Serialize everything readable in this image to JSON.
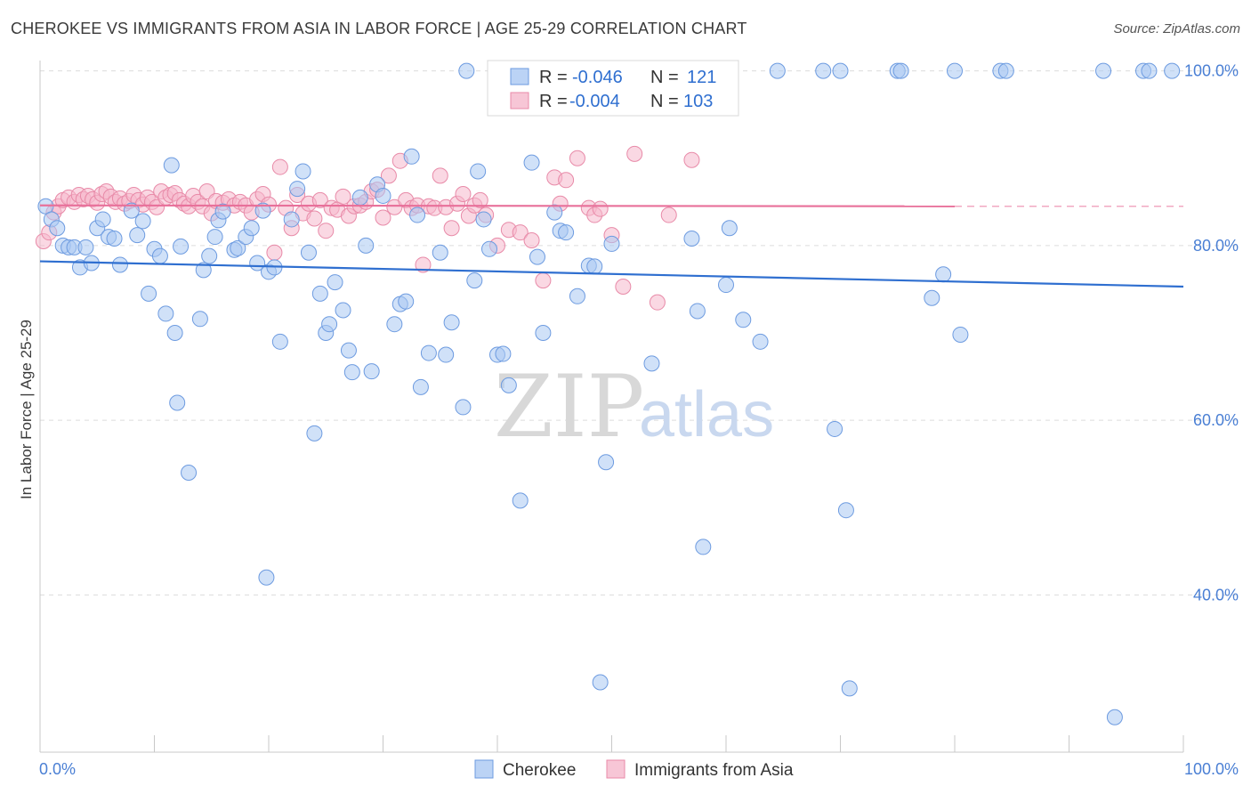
{
  "title": "CHEROKEE VS IMMIGRANTS FROM ASIA IN LABOR FORCE | AGE 25-29 CORRELATION CHART",
  "source": "Source: ZipAtlas.com",
  "watermark": {
    "zip": "ZIP",
    "atlas": "atlas"
  },
  "colors": {
    "cherokee_fill": "#aac8f2",
    "cherokee_stroke": "#6d9be0",
    "cherokee_line": "#2f6fd0",
    "asia_fill": "#f5b8cc",
    "asia_stroke": "#e88aa8",
    "asia_line": "#e8709a",
    "grid": "#dcdcdc",
    "axis_text": "#4a7fd4"
  },
  "legend": {
    "rows": [
      {
        "r_label": "R = ",
        "r_value": "-0.046",
        "n_label": "N = ",
        "n_value": "121"
      },
      {
        "r_label": "R = ",
        "r_value": "-0.004",
        "n_label": "N = ",
        "n_value": "103"
      }
    ]
  },
  "bottom_legend": [
    "Cherokee",
    "Immigrants from Asia"
  ],
  "chart_data": {
    "type": "scatter",
    "title": "CHEROKEE VS IMMIGRANTS FROM ASIA IN LABOR FORCE | AGE 25-29 CORRELATION CHART",
    "xlabel": "",
    "ylabel": "In Labor Force | Age 25-29",
    "xlim": [
      0,
      100
    ],
    "ylim": [
      22,
      102
    ],
    "x_tick_labels": [
      "0.0%",
      "100.0%"
    ],
    "y_ticks": [
      40,
      60,
      80,
      100
    ],
    "y_tick_labels": [
      "40.0%",
      "60.0%",
      "80.0%",
      "100.0%"
    ],
    "grid": true,
    "legend_position": "top-center",
    "series": [
      {
        "name": "Cherokee",
        "r": -0.046,
        "n": 121,
        "trend": {
          "x": [
            0,
            100
          ],
          "y": [
            78.2,
            75.3
          ]
        },
        "points": [
          [
            0.5,
            84.5
          ],
          [
            1,
            83
          ],
          [
            1.5,
            82
          ],
          [
            2,
            80
          ],
          [
            2.5,
            79.8
          ],
          [
            3,
            79.8
          ],
          [
            3.5,
            77.5
          ],
          [
            4,
            79.8
          ],
          [
            4.5,
            78
          ],
          [
            5,
            82
          ],
          [
            5.5,
            83
          ],
          [
            6,
            81
          ],
          [
            6.5,
            80.8
          ],
          [
            7,
            77.8
          ],
          [
            8,
            84
          ],
          [
            8.5,
            81.2
          ],
          [
            9,
            82.8
          ],
          [
            9.5,
            74.5
          ],
          [
            10,
            79.6
          ],
          [
            10.5,
            78.8
          ],
          [
            11,
            72.2
          ],
          [
            11.5,
            89.2
          ],
          [
            11.8,
            70
          ],
          [
            12,
            62
          ],
          [
            12.3,
            79.9
          ],
          [
            13,
            54
          ],
          [
            14,
            71.6
          ],
          [
            14.3,
            77.2
          ],
          [
            14.8,
            78.8
          ],
          [
            15.3,
            81
          ],
          [
            15.6,
            82.9
          ],
          [
            16,
            83.9
          ],
          [
            17,
            79.5
          ],
          [
            17.3,
            79.7
          ],
          [
            18,
            81
          ],
          [
            18.5,
            82
          ],
          [
            19,
            78
          ],
          [
            19.5,
            84
          ],
          [
            19.8,
            42
          ],
          [
            20,
            77
          ],
          [
            20.5,
            77.5
          ],
          [
            21,
            69
          ],
          [
            22,
            83
          ],
          [
            22.5,
            86.5
          ],
          [
            23,
            88.5
          ],
          [
            23.5,
            79.2
          ],
          [
            24,
            58.5
          ],
          [
            24.5,
            74.5
          ],
          [
            25,
            70
          ],
          [
            25.3,
            71
          ],
          [
            25.8,
            75.8
          ],
          [
            26.5,
            72.6
          ],
          [
            27,
            68
          ],
          [
            27.3,
            65.5
          ],
          [
            28,
            85.5
          ],
          [
            28.5,
            80
          ],
          [
            29,
            65.6
          ],
          [
            29.5,
            87
          ],
          [
            30,
            85.7
          ],
          [
            31,
            71
          ],
          [
            31.5,
            73.3
          ],
          [
            32,
            73.6
          ],
          [
            32.5,
            90.2
          ],
          [
            33,
            83.5
          ],
          [
            33.3,
            63.8
          ],
          [
            34,
            67.7
          ],
          [
            35,
            79.2
          ],
          [
            35.5,
            67.5
          ],
          [
            36,
            71.2
          ],
          [
            37,
            61.5
          ],
          [
            37.3,
            100
          ],
          [
            38,
            76
          ],
          [
            38.3,
            88.5
          ],
          [
            38.8,
            83
          ],
          [
            39.3,
            79.6
          ],
          [
            40,
            67.5
          ],
          [
            40.5,
            67.6
          ],
          [
            41,
            64
          ],
          [
            42,
            50.8
          ],
          [
            43,
            89.5
          ],
          [
            43.5,
            78.7
          ],
          [
            44,
            70
          ],
          [
            45,
            83.8
          ],
          [
            45.5,
            81.7
          ],
          [
            46,
            81.5
          ],
          [
            47,
            74.2
          ],
          [
            48,
            77.7
          ],
          [
            48.5,
            77.6
          ],
          [
            49,
            30
          ],
          [
            49.5,
            55.2
          ],
          [
            50,
            80.2
          ],
          [
            53,
            100
          ],
          [
            53.5,
            66.5
          ],
          [
            54,
            97.5
          ],
          [
            55.5,
            100
          ],
          [
            57,
            80.8
          ],
          [
            57.5,
            72.5
          ],
          [
            58,
            45.5
          ],
          [
            60,
            75.5
          ],
          [
            60.3,
            82
          ],
          [
            61.5,
            71.5
          ],
          [
            63,
            69
          ],
          [
            64.5,
            100
          ],
          [
            68.5,
            100
          ],
          [
            69.5,
            59
          ],
          [
            70,
            100
          ],
          [
            70.5,
            49.7
          ],
          [
            70.8,
            29.3
          ],
          [
            75,
            100
          ],
          [
            75.3,
            100
          ],
          [
            78,
            74
          ],
          [
            79,
            76.7
          ],
          [
            80,
            100
          ],
          [
            80.5,
            69.8
          ],
          [
            84,
            100
          ],
          [
            84.5,
            100
          ],
          [
            93,
            100
          ],
          [
            94,
            26
          ],
          [
            96.5,
            100
          ],
          [
            97,
            100
          ],
          [
            99,
            100
          ]
        ]
      },
      {
        "name": "Immigrants from Asia",
        "r": -0.004,
        "n": 103,
        "trend": {
          "x": [
            0,
            80
          ],
          "y": [
            84.6,
            84.5
          ]
        },
        "trend_dashed": {
          "x": [
            80,
            100
          ],
          "y": [
            84.5,
            84.5
          ]
        },
        "points": [
          [
            0.3,
            80.5
          ],
          [
            0.8,
            81.5
          ],
          [
            1.2,
            83.8
          ],
          [
            1.6,
            84.5
          ],
          [
            2,
            85.2
          ],
          [
            2.5,
            85.5
          ],
          [
            3,
            85
          ],
          [
            3.4,
            85.8
          ],
          [
            3.8,
            85.3
          ],
          [
            4.2,
            85.7
          ],
          [
            4.6,
            85.3
          ],
          [
            5,
            84.9
          ],
          [
            5.4,
            85.9
          ],
          [
            5.8,
            86.2
          ],
          [
            6.2,
            85.6
          ],
          [
            6.6,
            85
          ],
          [
            7,
            85.4
          ],
          [
            7.4,
            84.8
          ],
          [
            7.8,
            85.1
          ],
          [
            8.2,
            85.8
          ],
          [
            8.6,
            85.2
          ],
          [
            9,
            84.7
          ],
          [
            9.4,
            85.5
          ],
          [
            9.8,
            85
          ],
          [
            10.2,
            84.4
          ],
          [
            10.6,
            86.2
          ],
          [
            11,
            85.5
          ],
          [
            11.4,
            85.8
          ],
          [
            11.8,
            86
          ],
          [
            12.2,
            85.2
          ],
          [
            12.6,
            84.8
          ],
          [
            13,
            84.5
          ],
          [
            13.4,
            85.7
          ],
          [
            13.8,
            85
          ],
          [
            14.2,
            84.5
          ],
          [
            14.6,
            86.2
          ],
          [
            15,
            83.7
          ],
          [
            15.4,
            85.1
          ],
          [
            16,
            84.9
          ],
          [
            16.5,
            85.3
          ],
          [
            17,
            84.6
          ],
          [
            17.5,
            85
          ],
          [
            18,
            84.6
          ],
          [
            18.5,
            83.8
          ],
          [
            19,
            85.3
          ],
          [
            19.5,
            85.9
          ],
          [
            20,
            84.7
          ],
          [
            20.5,
            79.2
          ],
          [
            21,
            89
          ],
          [
            21.5,
            84.3
          ],
          [
            22,
            82
          ],
          [
            22.5,
            85.8
          ],
          [
            23,
            83.7
          ],
          [
            23.5,
            84.8
          ],
          [
            24,
            83.1
          ],
          [
            24.5,
            85.2
          ],
          [
            25,
            81.7
          ],
          [
            25.5,
            84.3
          ],
          [
            26,
            84.1
          ],
          [
            26.5,
            85.6
          ],
          [
            27,
            83.4
          ],
          [
            27.5,
            84.5
          ],
          [
            28,
            84.6
          ],
          [
            28.5,
            85
          ],
          [
            29,
            86.2
          ],
          [
            29.5,
            86.4
          ],
          [
            30,
            83.2
          ],
          [
            30.5,
            88
          ],
          [
            31,
            84.4
          ],
          [
            31.5,
            89.7
          ],
          [
            32,
            85.2
          ],
          [
            32.5,
            84.3
          ],
          [
            33,
            84.6
          ],
          [
            33.5,
            77.8
          ],
          [
            34,
            84.5
          ],
          [
            34.5,
            84.3
          ],
          [
            35,
            88
          ],
          [
            35.5,
            84.4
          ],
          [
            36,
            82
          ],
          [
            36.5,
            84.8
          ],
          [
            37,
            85.9
          ],
          [
            37.5,
            83.4
          ],
          [
            38,
            84.6
          ],
          [
            38.5,
            85.2
          ],
          [
            39,
            83.5
          ],
          [
            40,
            80
          ],
          [
            41,
            81.8
          ],
          [
            42,
            81.5
          ],
          [
            43,
            80.6
          ],
          [
            44,
            76
          ],
          [
            45,
            87.8
          ],
          [
            45.5,
            84.8
          ],
          [
            46,
            87.5
          ],
          [
            47,
            90
          ],
          [
            48,
            84.3
          ],
          [
            48.5,
            83.5
          ],
          [
            49,
            84.2
          ],
          [
            50,
            81.2
          ],
          [
            51,
            75.3
          ],
          [
            52,
            90.5
          ],
          [
            54,
            73.5
          ],
          [
            55,
            83.5
          ],
          [
            57,
            89.8
          ]
        ]
      }
    ]
  }
}
